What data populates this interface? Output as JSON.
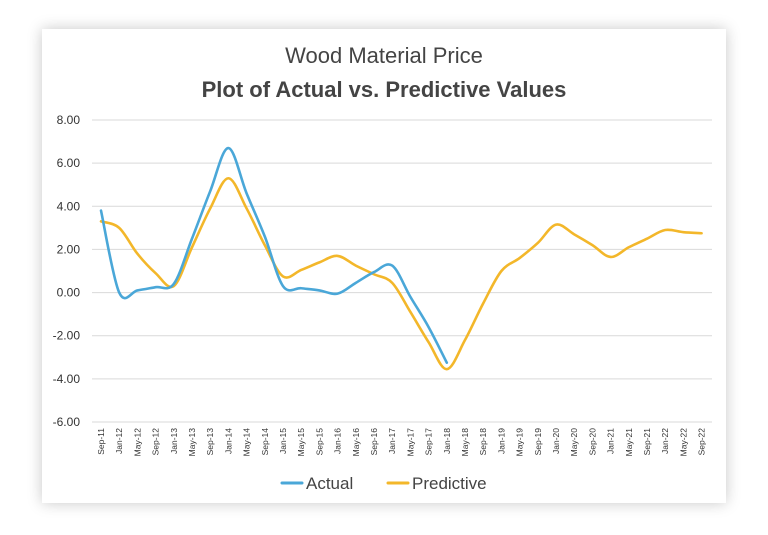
{
  "chart_data": {
    "type": "line",
    "title": "Wood Material Price",
    "subtitle": "Plot of Actual vs. Predictive Values",
    "xlabel": "",
    "ylabel": "",
    "ylim": [
      -6,
      8
    ],
    "y_ticks": [
      "8.00",
      "6.00",
      "4.00",
      "2.00",
      "0.00",
      "-2.00",
      "-4.00",
      "-6.00"
    ],
    "grid": true,
    "legend_position": "bottom",
    "categories": [
      "Sep-11",
      "Jan-12",
      "May-12",
      "Sep-12",
      "Jan-13",
      "May-13",
      "Sep-13",
      "Jan-14",
      "May-14",
      "Sep-14",
      "Jan-15",
      "May-15",
      "Sep-15",
      "Jan-16",
      "May-16",
      "Sep-16",
      "Jan-17",
      "May-17",
      "Sep-17",
      "Jan-18",
      "May-18",
      "Sep-18",
      "Jan-19",
      "May-19",
      "Sep-19",
      "Jan-20",
      "May-20",
      "Sep-20",
      "Jan-21",
      "May-21",
      "Sep-21",
      "Jan-22",
      "May-22",
      "Sep-22"
    ],
    "series": [
      {
        "name": "Actual",
        "color": "#4aa7d8",
        "values": [
          3.8,
          0.0,
          0.1,
          0.25,
          0.4,
          2.5,
          4.7,
          6.7,
          4.6,
          2.6,
          0.3,
          0.2,
          0.1,
          -0.05,
          0.45,
          0.95,
          1.25,
          -0.2,
          -1.6,
          -3.25,
          null,
          null,
          null,
          null,
          null,
          null,
          null,
          null,
          null,
          null,
          null,
          null,
          null,
          null
        ]
      },
      {
        "name": "Predictive",
        "color": "#f3b72a",
        "values": [
          3.3,
          3.0,
          1.8,
          0.9,
          0.3,
          2.1,
          3.9,
          5.3,
          3.9,
          2.2,
          0.75,
          1.05,
          1.4,
          1.7,
          1.25,
          0.85,
          0.45,
          -0.9,
          -2.3,
          -3.55,
          -2.2,
          -0.5,
          1.0,
          1.6,
          2.3,
          3.15,
          2.7,
          2.2,
          1.65,
          2.1,
          2.5,
          2.9,
          2.8,
          2.75
        ]
      }
    ]
  }
}
